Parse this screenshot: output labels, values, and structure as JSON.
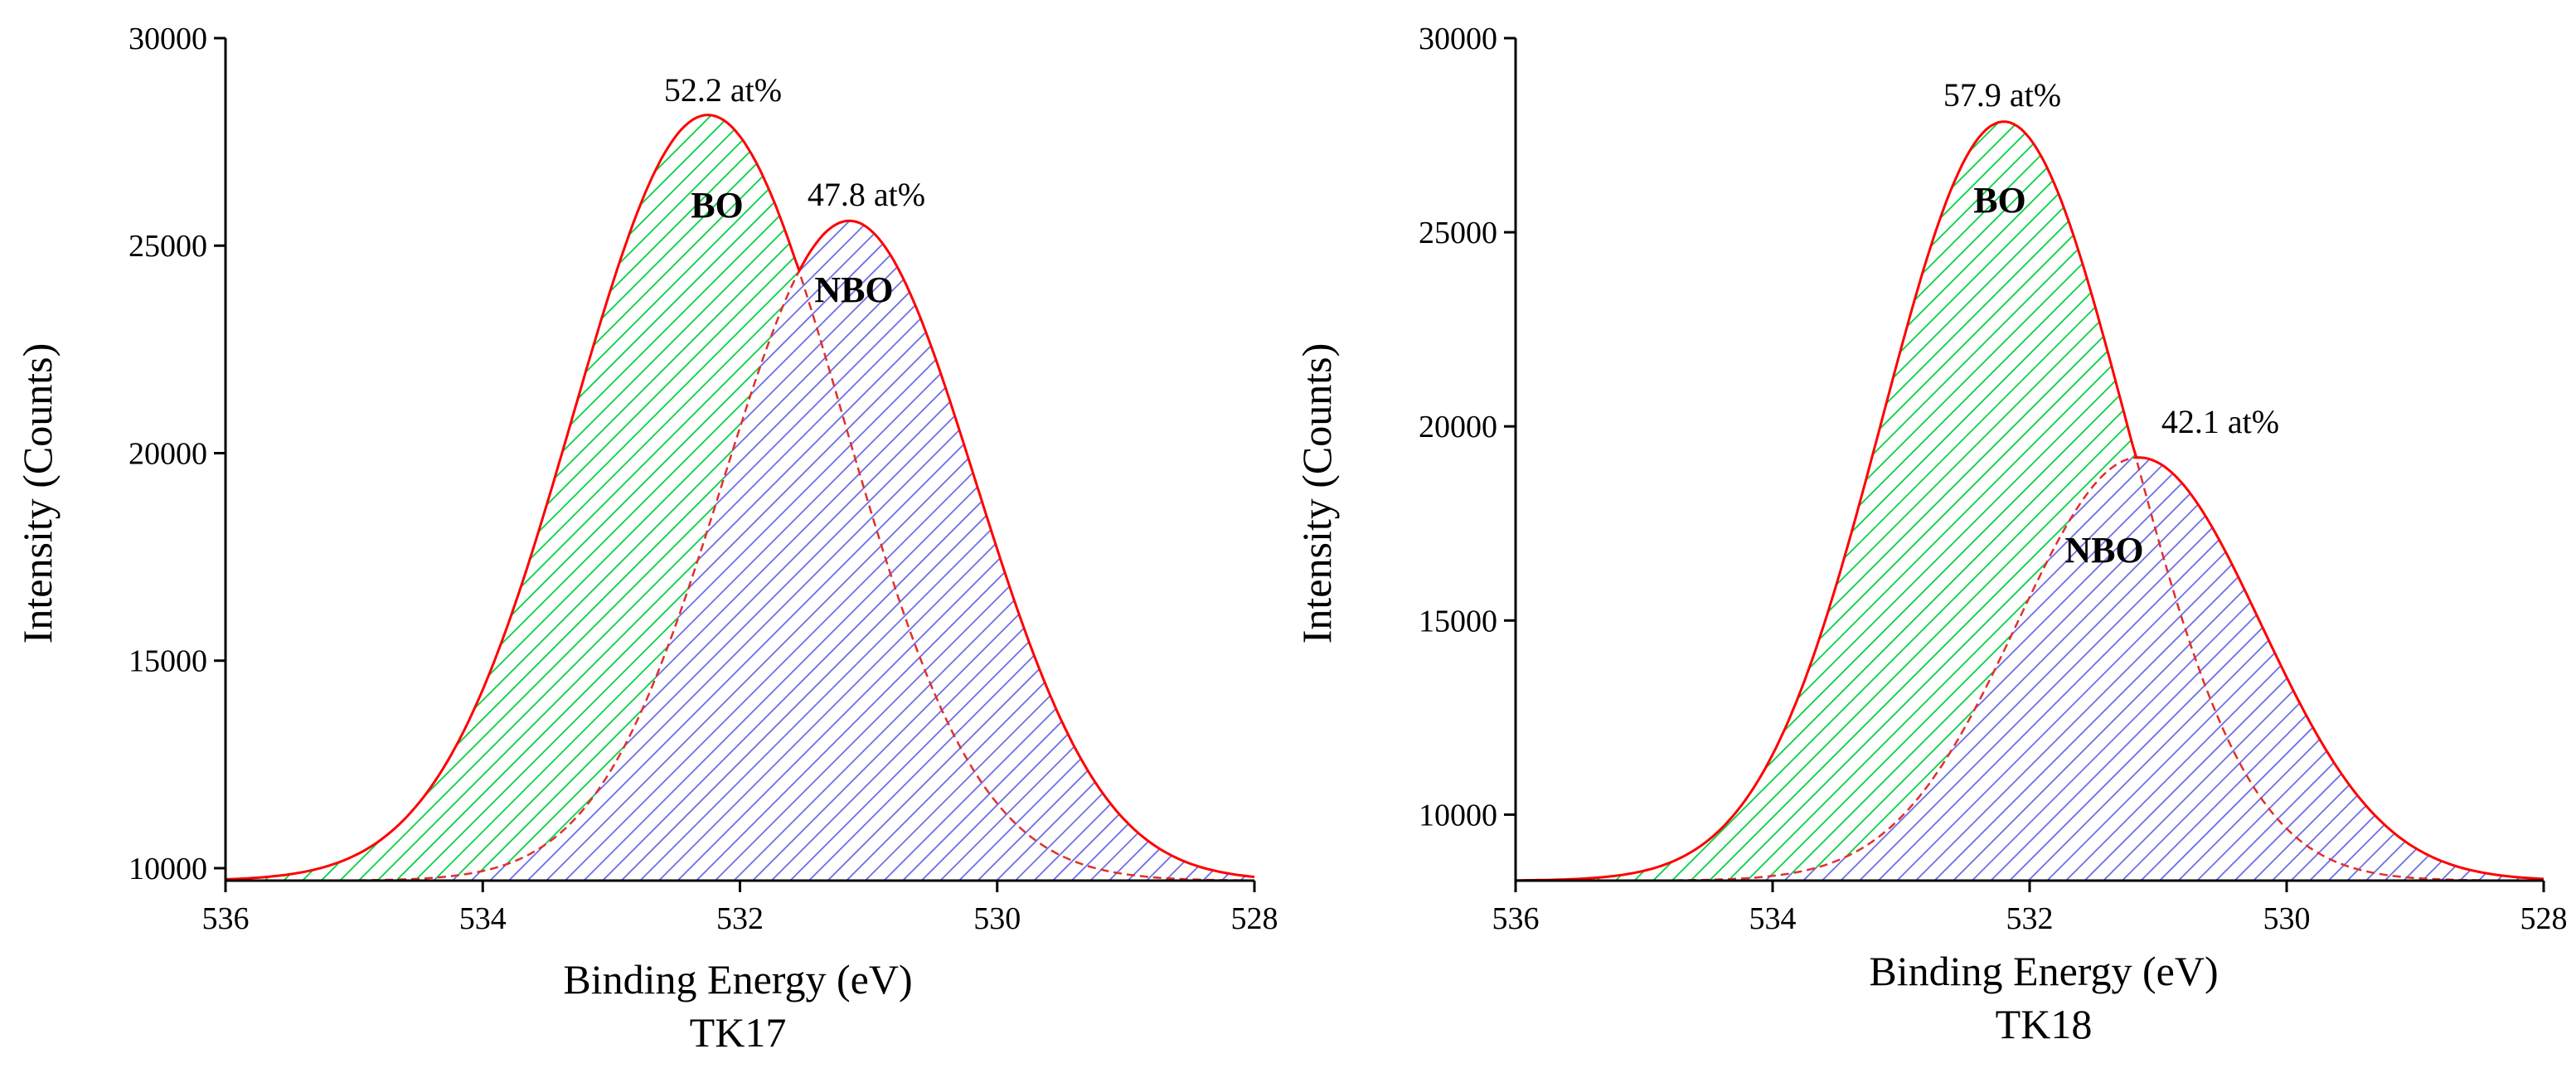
{
  "chart_data": [
    {
      "type": "area",
      "title": "TK17",
      "xlabel": "Binding Energy (eV)",
      "ylabel": "Intensity (Counts)",
      "xlim": [
        536,
        528
      ],
      "ylim": [
        9700,
        30000
      ],
      "baseline": 9700,
      "x_ticks": [
        536,
        534,
        532,
        530,
        528
      ],
      "y_ticks": [
        10000,
        15000,
        20000,
        25000,
        30000
      ],
      "series": [
        {
          "name": "BO",
          "center": 532.25,
          "peak": 28150,
          "sigma": 1.05,
          "color": "#00d040",
          "fraction_label": "52.2 at%"
        },
        {
          "name": "NBO",
          "center": 531.15,
          "peak": 25600,
          "sigma": 0.98,
          "color": "#6a6ae6",
          "fraction_label": "47.8 at%"
        }
      ],
      "envelope_color": "#ff0000"
    },
    {
      "type": "area",
      "title": "TK18",
      "xlabel": "Binding Energy (eV)",
      "ylabel": "Intensity (Counts)",
      "xlim": [
        536,
        528
      ],
      "ylim": [
        8300,
        30000
      ],
      "baseline": 8300,
      "x_ticks": [
        536,
        534,
        532,
        530,
        528
      ],
      "y_ticks": [
        10000,
        15000,
        20000,
        25000,
        30000
      ],
      "series": [
        {
          "name": "BO",
          "center": 532.2,
          "peak": 27850,
          "sigma": 0.95,
          "color": "#00d040",
          "fraction_label": "57.9 at%"
        },
        {
          "name": "NBO",
          "center": 531.15,
          "peak": 19200,
          "sigma": 0.95,
          "color": "#6a6ae6",
          "fraction_label": "42.1 at%"
        }
      ],
      "envelope_color": "#ff0000"
    }
  ]
}
